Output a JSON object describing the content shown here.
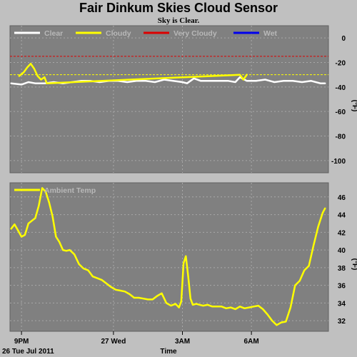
{
  "chart_data": [
    {
      "type": "line",
      "title": "Fair Dinkum Skies Cloud Sensor",
      "subtitle": "Sky is Clear.",
      "ylabel": "(°F)",
      "ylim": [
        -110,
        10
      ],
      "yticks": [
        0,
        -20,
        -40,
        -60,
        -80,
        -100
      ],
      "grid": true,
      "legend_position": "top-left",
      "legend": [
        {
          "name": "Clear",
          "color": "#ffffff"
        },
        {
          "name": "Cloudy",
          "color": "#ffff00"
        },
        {
          "name": "Very Cloudy",
          "color": "#dd0000"
        },
        {
          "name": "Wet",
          "color": "#0000ee"
        }
      ],
      "thresholds": [
        {
          "value": -15,
          "color": "#dd0000"
        },
        {
          "value": -30,
          "color": "#ffff00"
        }
      ],
      "series": [
        {
          "name": "Clear",
          "color": "#ffffff",
          "x": [
            19.55,
            20.0,
            20.3,
            20.6,
            21.0,
            21.4,
            21.8,
            22.2,
            22.6,
            23.0,
            23.4,
            23.8,
            24.2,
            24.6,
            25.0,
            25.4,
            25.8,
            26.2,
            26.6,
            27.0,
            27.2,
            27.5,
            27.8,
            28.2,
            28.6,
            29.0,
            29.3,
            29.5,
            29.8,
            30.2,
            30.6,
            31.0,
            31.4,
            31.8,
            32.2,
            32.6,
            33.0,
            33.2
          ],
          "values": [
            -37,
            -38,
            -36,
            -37,
            -37,
            -36,
            -37,
            -36,
            -35,
            -35,
            -36,
            -35,
            -35,
            -36,
            -35,
            -35,
            -36,
            -34,
            -35,
            -36,
            -37,
            -33,
            -35,
            -35,
            -35,
            -35,
            -36,
            -32,
            -35,
            -35,
            -34,
            -36,
            -35,
            -35,
            -36,
            -35,
            -37,
            -37
          ]
        },
        {
          "name": "Cloudy",
          "color": "#ffff00",
          "x": [
            19.9,
            20.1,
            20.25,
            20.4,
            20.55,
            20.7,
            20.85,
            21.0,
            21.1,
            29.5,
            29.65,
            29.8
          ],
          "values": [
            -31,
            -28,
            -24,
            -21,
            -25,
            -31,
            -34,
            -32,
            -37,
            -30,
            -34,
            -30
          ]
        }
      ]
    },
    {
      "type": "line",
      "ylabel": "(°F)",
      "xlabel": "Time",
      "ylim": [
        30.8,
        47.6
      ],
      "yticks": [
        32,
        34,
        36,
        38,
        40,
        42,
        44,
        46
      ],
      "grid": true,
      "legend_position": "top-left",
      "legend": [
        {
          "name": "Ambient Temp",
          "color": "#ffff00"
        }
      ],
      "xlim": [
        19.5,
        33.35
      ],
      "xticks": [
        {
          "x": 20,
          "label": "9PM"
        },
        {
          "x": 24,
          "label": "27 Wed"
        },
        {
          "x": 27,
          "label": "3AM"
        },
        {
          "x": 30,
          "label": "6AM"
        }
      ],
      "corner_label": "26 Tue Jul 2011",
      "series": [
        {
          "name": "Ambient Temp",
          "color": "#ffff00",
          "x": [
            19.55,
            19.7,
            19.85,
            20.0,
            20.15,
            20.3,
            20.45,
            20.6,
            20.75,
            20.9,
            21.05,
            21.2,
            21.35,
            21.5,
            21.65,
            21.8,
            21.95,
            22.1,
            22.3,
            22.5,
            22.7,
            22.9,
            23.1,
            23.3,
            23.5,
            23.7,
            23.9,
            24.1,
            24.3,
            24.5,
            24.7,
            24.9,
            25.1,
            25.3,
            25.5,
            25.7,
            25.9,
            26.1,
            26.3,
            26.5,
            26.7,
            26.85,
            26.95,
            27.05,
            27.15,
            27.25,
            27.35,
            27.45,
            27.6,
            27.75,
            27.9,
            28.1,
            28.3,
            28.5,
            28.7,
            28.9,
            29.1,
            29.3,
            29.5,
            29.7,
            29.9,
            30.1,
            30.3,
            30.5,
            30.7,
            30.9,
            31.1,
            31.3,
            31.5,
            31.7,
            31.9,
            32.1,
            32.3,
            32.5,
            32.7,
            32.9,
            33.1,
            33.2
          ],
          "values": [
            42.4,
            42.9,
            42.2,
            41.5,
            41.7,
            43.0,
            43.3,
            43.6,
            45.0,
            47.0,
            46.6,
            45.4,
            43.8,
            41.5,
            40.9,
            40.0,
            39.9,
            40.0,
            39.5,
            38.4,
            37.9,
            37.7,
            37.0,
            36.8,
            36.6,
            36.2,
            35.8,
            35.5,
            35.4,
            35.3,
            35.0,
            34.6,
            34.6,
            34.5,
            34.4,
            34.4,
            34.8,
            35.1,
            34.0,
            33.7,
            33.9,
            33.5,
            34.2,
            38.5,
            39.3,
            37.0,
            34.5,
            33.8,
            33.9,
            33.8,
            33.7,
            33.8,
            33.6,
            33.6,
            33.6,
            33.4,
            33.5,
            33.3,
            33.6,
            33.4,
            33.5,
            33.6,
            33.7,
            33.3,
            32.7,
            32.0,
            31.5,
            31.8,
            31.9,
            33.5,
            36.0,
            36.5,
            37.7,
            38.2,
            40.5,
            42.6,
            44.2,
            44.7
          ]
        }
      ]
    }
  ]
}
